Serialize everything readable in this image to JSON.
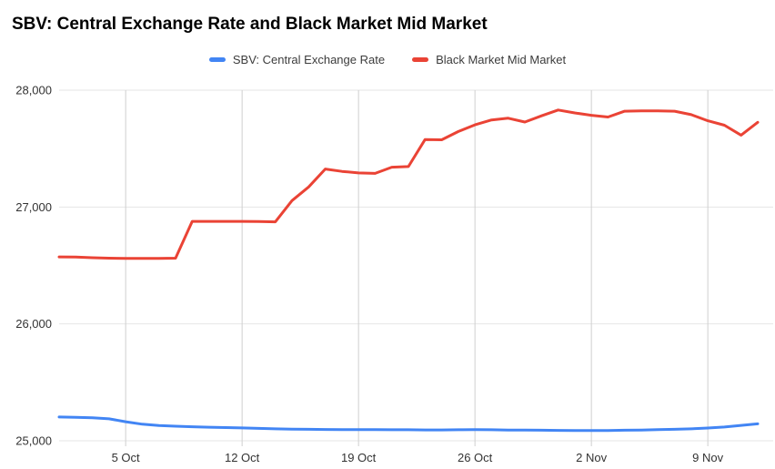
{
  "title": "SBV: Central Exchange Rate and Black Market Mid Market",
  "legend": [
    {
      "label": "SBV: Central Exchange Rate",
      "color": "#4285F4"
    },
    {
      "label": "Black Market Mid Market",
      "color": "#EA4335"
    }
  ],
  "chart_data": {
    "type": "line",
    "title": "SBV: Central Exchange Rate and Black Market Mid Market",
    "xlabel": "",
    "ylabel": "",
    "ylim": [
      25000,
      28000
    ],
    "grid": true,
    "legend_position": "top",
    "y_ticks": [
      25000,
      26000,
      27000,
      28000
    ],
    "y_tick_labels": [
      "25,000",
      "26,000",
      "27,000",
      "28,000"
    ],
    "x_ticks": [
      {
        "label": "5 Oct",
        "index": 4
      },
      {
        "label": "12 Oct",
        "index": 11
      },
      {
        "label": "19 Oct",
        "index": 18
      },
      {
        "label": "26 Oct",
        "index": 25
      },
      {
        "label": "2 Nov",
        "index": 32
      },
      {
        "label": "9 Nov",
        "index": 39
      }
    ],
    "x": [
      "1 Oct",
      "2 Oct",
      "3 Oct",
      "4 Oct",
      "5 Oct",
      "6 Oct",
      "7 Oct",
      "8 Oct",
      "9 Oct",
      "10 Oct",
      "11 Oct",
      "12 Oct",
      "13 Oct",
      "14 Oct",
      "15 Oct",
      "16 Oct",
      "17 Oct",
      "18 Oct",
      "19 Oct",
      "20 Oct",
      "21 Oct",
      "22 Oct",
      "23 Oct",
      "24 Oct",
      "25 Oct",
      "26 Oct",
      "27 Oct",
      "28 Oct",
      "29 Oct",
      "30 Oct",
      "31 Oct",
      "1 Nov",
      "2 Nov",
      "3 Nov",
      "4 Nov",
      "5 Nov",
      "6 Nov",
      "7 Nov",
      "8 Nov",
      "9 Nov",
      "10 Nov",
      "11 Nov",
      "12 Nov"
    ],
    "series": [
      {
        "name": "SBV: Central Exchange Rate",
        "color": "#4285F4",
        "values": [
          25203,
          25200,
          25196,
          25188,
          25163,
          25142,
          25130,
          25125,
          25120,
          25116,
          25113,
          25110,
          25106,
          25102,
          25100,
          25098,
          25097,
          25096,
          25095,
          25095,
          25094,
          25094,
          25093,
          25093,
          25094,
          25095,
          25094,
          25092,
          25091,
          25090,
          25089,
          25088,
          25087,
          25088,
          25090,
          25092,
          25095,
          25098,
          25102,
          25109,
          25118,
          25132,
          25145
        ]
      },
      {
        "name": "Black Market Mid Market",
        "color": "#EA4335",
        "values": [
          26573,
          26572,
          26566,
          26562,
          26560,
          26560,
          26560,
          26562,
          26877,
          26877,
          26877,
          26877,
          26876,
          26873,
          27055,
          27172,
          27325,
          27305,
          27292,
          27288,
          27341,
          27346,
          27578,
          27575,
          27646,
          27703,
          27745,
          27760,
          27727,
          27780,
          27830,
          27805,
          27785,
          27770,
          27820,
          27822,
          27822,
          27820,
          27790,
          27738,
          27700,
          27615,
          27725
        ]
      }
    ],
    "colors": {
      "grid_horizontal": "#e6e6e6",
      "grid_vertical": "#cfcfcf",
      "tick_text": "#333333"
    }
  }
}
